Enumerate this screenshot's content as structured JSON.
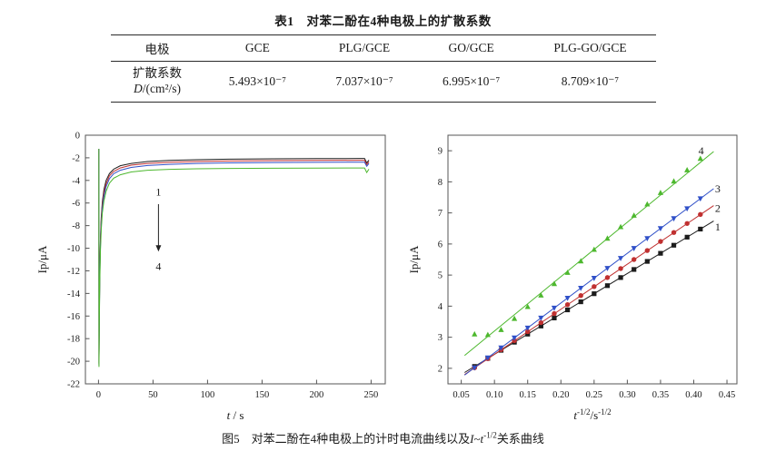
{
  "table": {
    "title": "表1　对苯二酚在4种电极上的扩散系数",
    "header": [
      "电极",
      "GCE",
      "PLG/GCE",
      "GO/GCE",
      "PLG-GO/GCE"
    ],
    "row_label_line1": "扩散系数",
    "row_label_line2_parts": [
      {
        "t": "D",
        "i": true
      },
      {
        "t": "/(cm²/s)"
      }
    ],
    "values": [
      "5.493×10⁻⁷",
      "7.037×10⁻⁷",
      "6.995×10⁻⁷",
      "8.709×10⁻⁷"
    ]
  },
  "caption": {
    "parts": [
      {
        "t": "图5　对苯二酚在4种电极上的计时电流曲线以及"
      },
      {
        "t": "I",
        "i": true
      },
      {
        "t": "~"
      },
      {
        "t": "t",
        "i": true
      },
      {
        "t": "-1/2",
        "sup": true
      },
      {
        "t": "关系曲线"
      }
    ]
  },
  "chart_data": [
    {
      "id": "chrono",
      "type": "line",
      "title": "",
      "ylabel": "Ip/μA",
      "xlabel_parts": [
        {
          "t": "t",
          "i": true
        },
        {
          "t": " / s"
        }
      ],
      "xlim": [
        -12,
        263
      ],
      "ylim": [
        -22,
        0
      ],
      "xticks": [
        0,
        50,
        100,
        150,
        200,
        250
      ],
      "xtick_labels": [
        "0",
        "50",
        "100",
        "150",
        "200",
        "250"
      ],
      "yticks": [
        0,
        -2,
        -4,
        -6,
        -8,
        -10,
        -12,
        -14,
        -16,
        -18,
        -20,
        -22
      ],
      "ytick_labels": [
        "0",
        "-2",
        "-4",
        "-6",
        "-8",
        "-10",
        "-12",
        "-14",
        "-16",
        "-18",
        "-20",
        "-22"
      ],
      "annotations": [
        {
          "text": "1",
          "x": 55,
          "y": -5.0
        },
        {
          "text": "4",
          "x": 55,
          "y": -11.6
        }
      ],
      "arrow": {
        "x": 55,
        "y1": -6.1,
        "y2": -10.3
      },
      "series": [
        {
          "name": "1",
          "color": "#1c1c1c",
          "x": [
            0.35,
            0.45,
            0.8,
            1.2,
            1.8,
            2.5,
            3.5,
            5,
            7,
            10,
            14,
            20,
            30,
            45,
            65,
            90,
            120,
            160,
            200,
            240,
            244,
            246,
            248
          ],
          "y": [
            -1.2,
            -20.2,
            -15.2,
            -11.8,
            -9.0,
            -7.3,
            -5.9,
            -4.8,
            -4.0,
            -3.4,
            -3.0,
            -2.7,
            -2.5,
            -2.33,
            -2.23,
            -2.17,
            -2.12,
            -2.09,
            -2.07,
            -2.06,
            -2.06,
            -2.45,
            -2.2
          ]
        },
        {
          "name": "2",
          "color": "#c03030",
          "x": [
            0.35,
            0.45,
            0.8,
            1.2,
            1.8,
            2.5,
            3.5,
            5,
            7,
            10,
            14,
            20,
            30,
            45,
            65,
            90,
            120,
            160,
            200,
            240,
            244,
            246,
            248
          ],
          "y": [
            -1.2,
            -20.3,
            -15.6,
            -12.2,
            -9.4,
            -7.6,
            -6.2,
            -5.1,
            -4.3,
            -3.6,
            -3.2,
            -2.9,
            -2.65,
            -2.5,
            -2.4,
            -2.33,
            -2.28,
            -2.25,
            -2.23,
            -2.22,
            -2.22,
            -2.6,
            -2.35
          ]
        },
        {
          "name": "3",
          "color": "#3050c8",
          "x": [
            0.35,
            0.45,
            0.8,
            1.2,
            1.8,
            2.5,
            3.5,
            5,
            7,
            10,
            14,
            20,
            30,
            45,
            65,
            90,
            120,
            160,
            200,
            240,
            244,
            246,
            248
          ],
          "y": [
            -1.2,
            -20.4,
            -16.0,
            -12.6,
            -9.8,
            -8.0,
            -6.5,
            -5.4,
            -4.55,
            -3.85,
            -3.4,
            -3.1,
            -2.85,
            -2.68,
            -2.58,
            -2.5,
            -2.45,
            -2.42,
            -2.4,
            -2.39,
            -2.39,
            -2.75,
            -2.5
          ]
        },
        {
          "name": "4",
          "color": "#4db82e",
          "x": [
            0.35,
            0.45,
            0.8,
            1.2,
            1.8,
            2.5,
            3.5,
            5,
            7,
            10,
            14,
            20,
            30,
            45,
            65,
            90,
            120,
            160,
            200,
            240,
            244,
            246,
            248
          ],
          "y": [
            -1.2,
            -20.5,
            -16.4,
            -13.0,
            -10.2,
            -8.4,
            -6.9,
            -5.8,
            -4.95,
            -4.25,
            -3.8,
            -3.5,
            -3.25,
            -3.1,
            -3.02,
            -2.97,
            -2.94,
            -2.92,
            -2.91,
            -2.9,
            -2.9,
            -3.3,
            -3.0
          ]
        }
      ]
    },
    {
      "id": "cottrell",
      "type": "scatter",
      "title": "",
      "ylabel": "Ip/μA",
      "xlabel_parts": [
        {
          "t": "t",
          "i": true
        },
        {
          "t": "-1/2",
          "sup": true
        },
        {
          "t": "/s"
        },
        {
          "t": "-1/2",
          "sup": true
        }
      ],
      "xlim": [
        0.03,
        0.465
      ],
      "ylim": [
        1.5,
        9.5
      ],
      "xticks": [
        0.05,
        0.1,
        0.15,
        0.2,
        0.25,
        0.3,
        0.35,
        0.4,
        0.45
      ],
      "xtick_labels": [
        "0.05",
        "0.10",
        "0.15",
        "0.20",
        "0.25",
        "0.30",
        "0.35",
        "0.40",
        "0.45"
      ],
      "yticks": [
        2,
        3,
        4,
        5,
        6,
        7,
        8,
        9
      ],
      "ytick_labels": [
        "2",
        "3",
        "4",
        "5",
        "6",
        "7",
        "8",
        "9"
      ],
      "series": [
        {
          "name": "1",
          "marker": "square",
          "color": "#1c1c1c",
          "label": "1",
          "label_x": 0.432,
          "label_y": 6.55,
          "fit": {
            "slope": 13,
            "intercept": 1.15,
            "x1": 0.055,
            "x2": 0.43
          },
          "x": [
            0.07,
            0.09,
            0.11,
            0.13,
            0.15,
            0.17,
            0.19,
            0.21,
            0.23,
            0.25,
            0.27,
            0.29,
            0.31,
            0.33,
            0.35,
            0.37,
            0.39,
            0.41
          ],
          "y": [
            2.06,
            2.32,
            2.58,
            2.84,
            3.1,
            3.36,
            3.62,
            3.88,
            4.14,
            4.4,
            4.66,
            4.92,
            5.18,
            5.44,
            5.7,
            5.96,
            6.22,
            6.48
          ]
        },
        {
          "name": "2",
          "marker": "circle",
          "color": "#c03030",
          "label": "2",
          "label_x": 0.432,
          "label_y": 7.15,
          "fit": {
            "slope": 14.5,
            "intercept": 1.0,
            "x1": 0.055,
            "x2": 0.43
          },
          "x": [
            0.07,
            0.09,
            0.11,
            0.13,
            0.15,
            0.17,
            0.19,
            0.21,
            0.23,
            0.25,
            0.27,
            0.29,
            0.31,
            0.33,
            0.35,
            0.37,
            0.39,
            0.41
          ],
          "y": [
            2.02,
            2.31,
            2.6,
            2.89,
            3.18,
            3.47,
            3.76,
            4.05,
            4.34,
            4.63,
            4.92,
            5.21,
            5.5,
            5.79,
            6.08,
            6.37,
            6.66,
            6.95
          ]
        },
        {
          "name": "3",
          "marker": "triangle-down",
          "color": "#3050c8",
          "label": "3",
          "label_x": 0.432,
          "label_y": 7.78,
          "fit": {
            "slope": 16,
            "intercept": 0.9,
            "x1": 0.055,
            "x2": 0.43
          },
          "x": [
            0.07,
            0.09,
            0.11,
            0.13,
            0.15,
            0.17,
            0.19,
            0.21,
            0.23,
            0.25,
            0.27,
            0.29,
            0.31,
            0.33,
            0.35,
            0.37,
            0.39,
            0.41
          ],
          "y": [
            2.02,
            2.34,
            2.66,
            2.98,
            3.3,
            3.62,
            3.94,
            4.26,
            4.58,
            4.9,
            5.22,
            5.54,
            5.86,
            6.18,
            6.5,
            6.82,
            7.14,
            7.46
          ]
        },
        {
          "name": "4",
          "marker": "triangle-up",
          "color": "#4db82e",
          "label": "4",
          "label_x": 0.407,
          "label_y": 9.0,
          "fit": {
            "slope": 17.5,
            "intercept": 1.45,
            "x1": 0.055,
            "x2": 0.43
          },
          "x": [
            0.07,
            0.09,
            0.11,
            0.13,
            0.15,
            0.17,
            0.19,
            0.21,
            0.23,
            0.25,
            0.27,
            0.29,
            0.31,
            0.33,
            0.35,
            0.37,
            0.39,
            0.41
          ],
          "y": [
            3.1,
            3.08,
            3.24,
            3.6,
            3.98,
            4.35,
            4.72,
            5.08,
            5.45,
            5.82,
            6.18,
            6.55,
            6.92,
            7.28,
            7.65,
            8.02,
            8.38,
            8.75
          ]
        }
      ]
    }
  ]
}
